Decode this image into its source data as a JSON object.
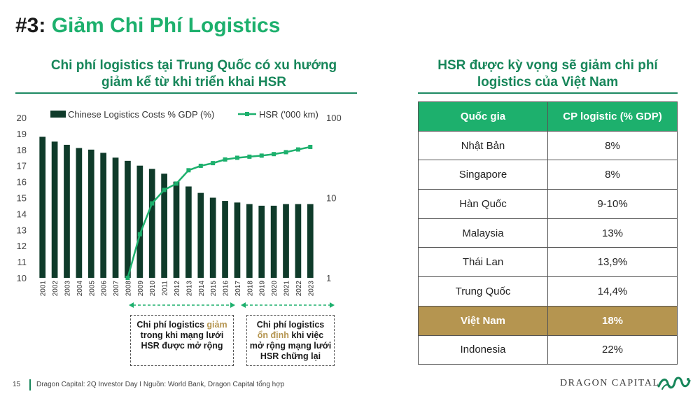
{
  "slide": {
    "title_number": "#3:",
    "title_text": "Giảm Chi Phí Logistics"
  },
  "left_section": {
    "title_line1": "Chi phí logistics tại Trung Quốc có xu hướng",
    "title_line2": "giảm kể từ khi triển khai HSR"
  },
  "right_section": {
    "title_line1": "HSR được kỳ vọng sẽ giảm chi phí",
    "title_line2": "logistics của Việt Nam"
  },
  "chart_data": {
    "type": "bar",
    "categories": [
      "2001",
      "2002",
      "2003",
      "2004",
      "2005",
      "2006",
      "2007",
      "2008",
      "2009",
      "2010",
      "2011",
      "2012",
      "2013",
      "2014",
      "2015",
      "2016",
      "2017",
      "2018",
      "2019",
      "2020",
      "2021",
      "2022",
      "2023"
    ],
    "series": [
      {
        "name": "Chinese Logistics Costs % GDP (%)",
        "type": "bar",
        "axis": "left",
        "color": "#0f3b2a",
        "values": [
          18.8,
          18.5,
          18.3,
          18.1,
          18.0,
          17.8,
          17.5,
          17.3,
          17.0,
          16.8,
          16.5,
          16.0,
          15.7,
          15.3,
          15.0,
          14.8,
          14.7,
          14.6,
          14.5,
          14.5,
          14.6,
          14.6,
          14.6
        ]
      },
      {
        "name": "HSR ('000 km)",
        "type": "line",
        "axis": "right",
        "color": "#1db06d",
        "x": [
          "2008",
          "2009",
          "2010",
          "2011",
          "2012",
          "2013",
          "2014",
          "2015",
          "2016",
          "2017",
          "2018",
          "2019",
          "2020",
          "2021",
          "2022",
          "2023"
        ],
        "values": [
          1.0,
          3.5,
          8.5,
          12.5,
          15.0,
          22.0,
          25.0,
          27.0,
          30.0,
          31.5,
          32.5,
          33.5,
          35.0,
          37.0,
          40.0,
          43.0
        ]
      }
    ],
    "ylim_left": [
      10,
      20
    ],
    "yticks_left": [
      "10",
      "11",
      "12",
      "13",
      "14",
      "15",
      "16",
      "17",
      "18",
      "19",
      "20"
    ],
    "ylim_right": [
      1,
      100
    ],
    "yscale_right": "log",
    "yticks_right": [
      "1",
      "10",
      "100"
    ],
    "legend_placement": "top",
    "grid": false
  },
  "notes": {
    "left_pre": "Chi phí logistics ",
    "left_hl": "giảm",
    "left_post1": "trong khi mạng lưới",
    "left_post2": "HSR được mở rộng",
    "right_line1": "Chi phí logistics",
    "right_hl": "ổn định",
    "right_mid": " khi việc",
    "right_line3": "mở rộng mạng lưới",
    "right_line4": "HSR chững lại"
  },
  "table": {
    "header": [
      "Quốc gia",
      "CP logistic (% GDP)"
    ],
    "rows": [
      [
        "Nhật Bản",
        "8%"
      ],
      [
        "Singapore",
        "8%"
      ],
      [
        "Hàn Quốc",
        "9-10%"
      ],
      [
        "Malaysia",
        "13%"
      ],
      [
        "Thái Lan",
        "13,9%"
      ],
      [
        "Trung Quốc",
        "14,4%"
      ],
      [
        "Việt Nam",
        "18%"
      ],
      [
        "Indonesia",
        "22%"
      ]
    ],
    "highlight_row": 6,
    "header_color": "#1db06d",
    "highlight_color": "#b59550"
  },
  "footer": {
    "page": "15",
    "source": "Dragon Capital: 2Q Investor Day I Nguồn: World Bank, Dragon Capital tổng hợp",
    "brand": "DRAGON CAPITAL"
  }
}
